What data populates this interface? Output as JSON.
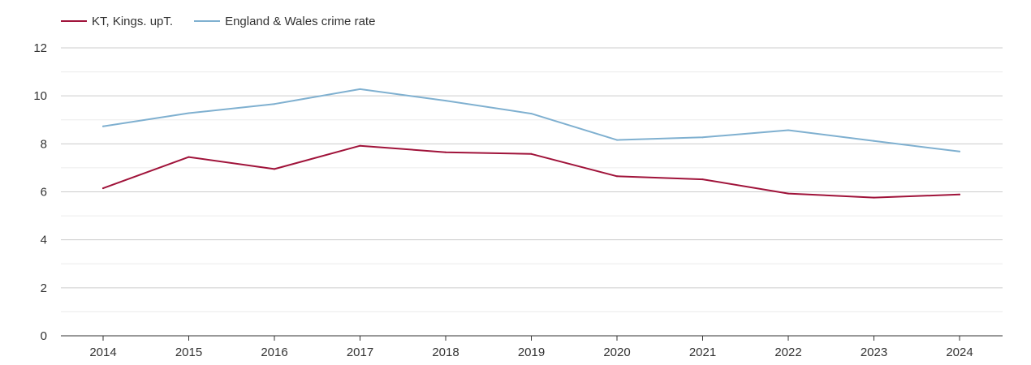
{
  "legend": [
    {
      "name": "KT, Kings. upT.",
      "color": "#a0133a"
    },
    {
      "name": "England & Wales crime rate",
      "color": "#7fb0d0"
    }
  ],
  "chart_data": {
    "type": "line",
    "title": "",
    "xlabel": "",
    "ylabel": "",
    "x": [
      "2014",
      "2015",
      "2016",
      "2017",
      "2018",
      "2019",
      "2020",
      "2021",
      "2022",
      "2023",
      "2024"
    ],
    "ylim": [
      0,
      12
    ],
    "yticks": [
      0,
      2,
      4,
      6,
      8,
      10,
      12
    ],
    "grid": true,
    "legend_position": "top-left",
    "series": [
      {
        "name": "KT, Kings. upT.",
        "color": "#a0133a",
        "values": [
          6.15,
          7.45,
          6.95,
          7.92,
          7.65,
          7.58,
          6.65,
          6.52,
          5.93,
          5.76,
          5.89
        ]
      },
      {
        "name": "England & Wales crime rate",
        "color": "#7fb0d0",
        "values": [
          8.73,
          9.28,
          9.66,
          10.28,
          9.8,
          9.26,
          8.16,
          8.27,
          8.57,
          8.12,
          7.68
        ]
      }
    ]
  }
}
